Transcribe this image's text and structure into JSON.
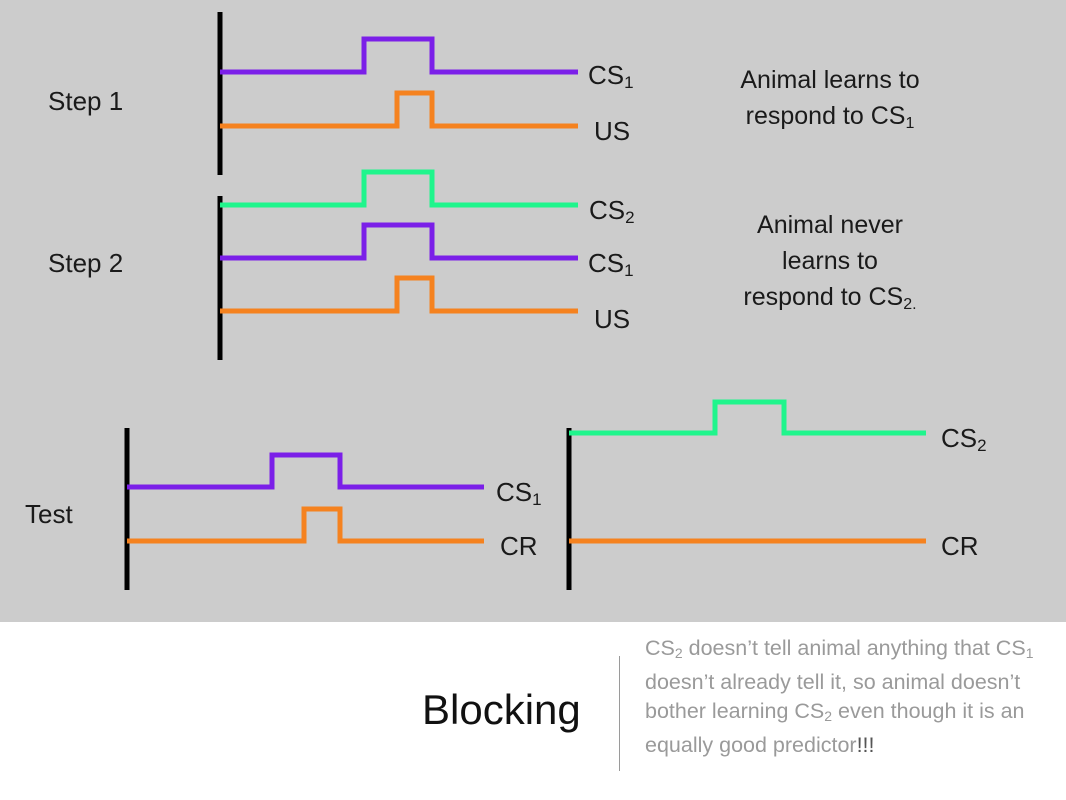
{
  "colors": {
    "background_panel": "#cccccc",
    "cs1": "#7b1fe8",
    "cs2": "#1ff58c",
    "us": "#f5821f",
    "axis": "#000000",
    "caption": "#9a9a9a"
  },
  "step1": {
    "label": "Step 1",
    "signals": [
      {
        "name": "CS",
        "sub": "1",
        "color": "cs1"
      },
      {
        "name": "US",
        "sub": "",
        "color": "us"
      }
    ],
    "note_line1": "Animal learns to",
    "note_line2": "respond to CS",
    "note_sub": "1"
  },
  "step2": {
    "label": "Step 2",
    "signals": [
      {
        "name": "CS",
        "sub": "2",
        "color": "cs2"
      },
      {
        "name": "CS",
        "sub": "1",
        "color": "cs1"
      },
      {
        "name": "US",
        "sub": "",
        "color": "us"
      }
    ],
    "note_line1": "Animal never",
    "note_line2": "learns to",
    "note_line3": "respond to CS",
    "note_sub": "2."
  },
  "test": {
    "label": "Test",
    "left_signals": [
      {
        "name": "CS",
        "sub": "1",
        "color": "cs1"
      },
      {
        "name": "CR",
        "sub": "",
        "color": "us"
      }
    ],
    "right_signals": [
      {
        "name": "CS",
        "sub": "2",
        "color": "cs2"
      },
      {
        "name": "CR",
        "sub": "",
        "color": "us"
      }
    ]
  },
  "title": "Blocking",
  "caption": {
    "p1": "CS",
    "s1": "2",
    "p2": " doesn’t tell animal anything that CS",
    "s2": "1",
    "p3": " doesn’t already tell it, so animal doesn’t bother learning CS",
    "s3": "2",
    "p4": " even though it is an equally good predictor",
    "p5": "!!!"
  }
}
